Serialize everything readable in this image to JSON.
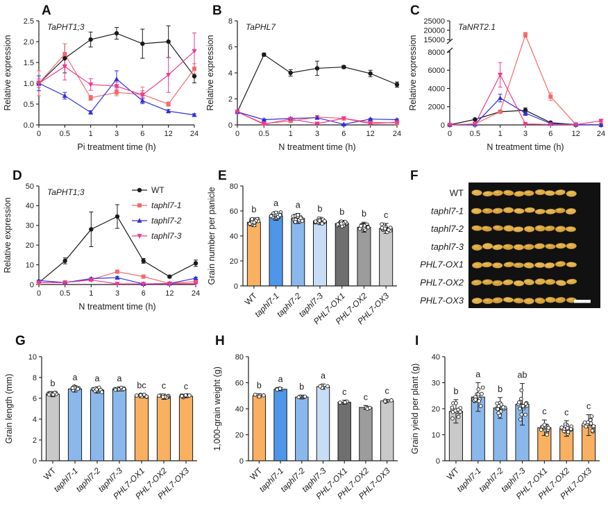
{
  "panel_letters": {
    "A": "A",
    "B": "B",
    "C": "C",
    "D": "D",
    "E": "E",
    "F": "F",
    "G": "G",
    "H": "H",
    "I": "I"
  },
  "genotypes": [
    "WT",
    "taphl7-1",
    "taphl7-2",
    "taphl7-3",
    "PHL7-OX1",
    "PHL7-OX2",
    "PHL7-OX3"
  ],
  "colors": {
    "wt_line": "#1a1a1a",
    "taphl7_1_line": "#F5696B",
    "taphl7_2_line": "#2E2EE0",
    "taphl7_3_line": "#EF3890",
    "bar_orange": "#F9B061",
    "bar_blue_strong": "#4E96E9",
    "bar_blue_mid": "#8AB8EC",
    "bar_blue_light": "#C7DCF5",
    "bar_gray_dark": "#6F6F6F",
    "bar_gray_mid": "#9C9C9C",
    "bar_gray_light": "#C9C9C9"
  },
  "chart_data": [
    {
      "panel": "A",
      "type": "line",
      "title": "TaPHT1;3",
      "xlabel": "Pi treatment time (h)",
      "ylabel": "Relative expression",
      "x": [
        "0",
        "0.5",
        "1",
        "3",
        "6",
        "12",
        "24"
      ],
      "ylim": [
        0,
        2.5
      ],
      "yticks": [
        [
          0,
          "0.0"
        ],
        [
          0.5,
          "0.5"
        ],
        [
          1,
          "1.0"
        ],
        [
          1.5,
          "1.5"
        ],
        [
          2,
          "2.0"
        ],
        [
          2.5,
          "2.5"
        ]
      ],
      "series": [
        {
          "name": "WT",
          "marker": "circle",
          "color": "#1a1a1a",
          "values": [
            1.0,
            1.6,
            2.05,
            2.2,
            1.95,
            2.0,
            1.17
          ],
          "err": [
            0.05,
            0.35,
            0.18,
            0.14,
            0.35,
            0.38,
            0.16
          ]
        },
        {
          "name": "taphl7-1",
          "marker": "square",
          "color": "#F5696B",
          "values": [
            1.0,
            1.7,
            0.65,
            0.78,
            0.73,
            0.5,
            1.35
          ],
          "err": [
            0.3,
            0.25,
            0.06,
            0.08,
            0.18,
            0.05,
            0.12
          ]
        },
        {
          "name": "taphl7-2",
          "marker": "triangle-up",
          "color": "#2E2EE0",
          "values": [
            1.0,
            0.7,
            0.3,
            1.1,
            0.58,
            0.33,
            0.24
          ],
          "err": [
            0.18,
            0.08,
            0.04,
            0.2,
            0.07,
            0.04,
            0.03
          ]
        },
        {
          "name": "taphl7-3",
          "marker": "triangle-down",
          "color": "#EF3890",
          "values": [
            1.0,
            1.4,
            0.97,
            0.93,
            0.72,
            1.2,
            1.77
          ],
          "err": [
            0.1,
            0.32,
            0.14,
            0.1,
            0.1,
            0.42,
            0.44
          ]
        }
      ]
    },
    {
      "panel": "B",
      "type": "line",
      "title": "TaPHL7",
      "xlabel": "N treatment time (h)",
      "ylabel": "Relative expression",
      "x": [
        "0",
        "0.5",
        "1",
        "3",
        "6",
        "12",
        "24"
      ],
      "ylim": [
        0,
        8
      ],
      "yticks": [
        [
          0,
          "0"
        ],
        [
          2,
          "2"
        ],
        [
          4,
          "4"
        ],
        [
          6,
          "6"
        ],
        [
          8,
          "8"
        ]
      ],
      "series": [
        {
          "name": "WT",
          "marker": "circle",
          "color": "#1a1a1a",
          "values": [
            1.0,
            5.4,
            4.0,
            4.35,
            4.45,
            3.95,
            3.1
          ],
          "err": [
            0.05,
            0.12,
            0.25,
            0.55,
            0.12,
            0.25,
            0.2
          ]
        },
        {
          "name": "taphl7-1",
          "marker": "square",
          "color": "#F5696B",
          "values": [
            1.0,
            0.1,
            0.3,
            0.6,
            0.5,
            0.2,
            0.15
          ],
          "err": [
            0.05,
            0.05,
            0.06,
            0.08,
            0.08,
            0.05,
            0.05
          ]
        },
        {
          "name": "taphl7-2",
          "marker": "triangle-up",
          "color": "#2E2EE0",
          "values": [
            1.0,
            0.4,
            0.5,
            0.55,
            0.05,
            0.45,
            0.4
          ],
          "err": [
            0.05,
            0.06,
            0.08,
            0.08,
            0.03,
            0.06,
            0.06
          ]
        },
        {
          "name": "taphl7-3",
          "marker": "triangle-down",
          "color": "#EF3890",
          "values": [
            1.0,
            0.05,
            0.45,
            0.1,
            0.5,
            0.1,
            0.2
          ],
          "err": [
            0.05,
            0.03,
            0.08,
            0.04,
            0.08,
            0.04,
            0.05
          ]
        }
      ]
    },
    {
      "panel": "C",
      "type": "line",
      "title": "TaNRT2.1",
      "xlabel": "N treatment time (h)",
      "ylabel": "Relative expression",
      "x": [
        "0",
        "0.5",
        "1",
        "3",
        "6",
        "12",
        "24"
      ],
      "ybreak": {
        "lower": [
          0,
          8000
        ],
        "upper": [
          15000,
          25000
        ]
      },
      "yticks": [
        [
          0,
          "0"
        ],
        [
          2000,
          "2000"
        ],
        [
          4000,
          "4000"
        ],
        [
          6000,
          "6000"
        ],
        [
          8000,
          "8000"
        ],
        [
          15000,
          "15000"
        ],
        [
          20000,
          "20000"
        ],
        [
          25000,
          "25000"
        ]
      ],
      "series": [
        {
          "name": "WT",
          "marker": "circle",
          "color": "#1a1a1a",
          "values": [
            10,
            600,
            1450,
            1600,
            250,
            30,
            20
          ],
          "err": [
            5,
            80,
            120,
            260,
            60,
            10,
            5
          ]
        },
        {
          "name": "taphl7-1",
          "marker": "square",
          "color": "#F5696B",
          "values": [
            10,
            100,
            1450,
            17500,
            3100,
            50,
            30
          ],
          "err": [
            5,
            30,
            150,
            1300,
            420,
            10,
            5
          ]
        },
        {
          "name": "taphl7-2",
          "marker": "triangle-up",
          "color": "#2E2EE0",
          "values": [
            10,
            50,
            2950,
            1300,
            150,
            20,
            10
          ],
          "err": [
            5,
            20,
            420,
            260,
            40,
            5,
            5
          ]
        },
        {
          "name": "taphl7-3",
          "marker": "triangle-down",
          "color": "#EF3890",
          "values": [
            10,
            100,
            5500,
            100,
            50,
            30,
            450
          ],
          "err": [
            5,
            30,
            1350,
            30,
            10,
            5,
            110
          ]
        }
      ]
    },
    {
      "panel": "D",
      "type": "line",
      "title": "TaPHT1;3",
      "xlabel": "N treatment time (h)",
      "ylabel": "Relative expression",
      "x": [
        "0",
        "0.5",
        "1",
        "3",
        "6",
        "12",
        "24"
      ],
      "ylim": [
        0,
        50
      ],
      "yticks": [
        [
          0,
          "0"
        ],
        [
          10,
          "10"
        ],
        [
          20,
          "20"
        ],
        [
          30,
          "30"
        ],
        [
          40,
          "40"
        ],
        [
          50,
          "50"
        ]
      ],
      "legend": [
        "WT",
        "taphl7-1",
        "taphl7-2",
        "taphl7-3"
      ],
      "series": [
        {
          "name": "WT",
          "marker": "circle",
          "color": "#1a1a1a",
          "values": [
            1,
            12,
            28,
            34.5,
            12,
            4,
            10.8
          ],
          "err": [
            0.3,
            1.5,
            8.8,
            6,
            1.2,
            0.6,
            1.6
          ]
        },
        {
          "name": "taphl7-1",
          "marker": "square",
          "color": "#F5696B",
          "values": [
            1,
            1,
            2.5,
            6.5,
            4,
            0.5,
            1.5
          ],
          "err": [
            0.2,
            0.2,
            0.5,
            0.8,
            0.6,
            0.2,
            0.3
          ]
        },
        {
          "name": "taphl7-2",
          "marker": "triangle-up",
          "color": "#2E2EE0",
          "values": [
            2,
            1,
            3,
            3.5,
            0.3,
            0.5,
            3.2
          ],
          "err": [
            0.3,
            0.2,
            0.5,
            0.6,
            0.2,
            0.2,
            0.5
          ]
        },
        {
          "name": "taphl7-3",
          "marker": "triangle-down",
          "color": "#EF3890",
          "values": [
            1,
            1,
            2.3,
            0.3,
            0.3,
            0.3,
            0.5
          ],
          "err": [
            0.2,
            0.2,
            0.5,
            0.1,
            0.1,
            0.1,
            0.2
          ]
        }
      ]
    },
    {
      "panel": "E",
      "type": "bar",
      "ylabel": "Grain number per panicle",
      "categories": [
        "WT",
        "taphl7-1",
        "taphl7-2",
        "taphl7-3",
        "PHL7-OX1",
        "PHL7-OX2",
        "PHL7-OX3"
      ],
      "values": [
        51,
        56,
        54,
        52,
        50,
        47,
        46
      ],
      "err": [
        3.5,
        3.5,
        4,
        3,
        2.5,
        4,
        4
      ],
      "letters": [
        "b",
        "a",
        "a",
        "b",
        "b",
        "b",
        "c"
      ],
      "colors": [
        "#F9B061",
        "#4E96E9",
        "#8AB8EC",
        "#C7DCF5",
        "#6F6F6F",
        "#9C9C9C",
        "#C9C9C9"
      ],
      "n_points": 20,
      "ylim": [
        0,
        80
      ],
      "yticks": [
        [
          0,
          "0"
        ],
        [
          20,
          "20"
        ],
        [
          40,
          "40"
        ],
        [
          60,
          "60"
        ],
        [
          80,
          "80"
        ]
      ]
    },
    {
      "panel": "G",
      "type": "bar",
      "ylabel": "Grain length (mm)",
      "categories": [
        "WT",
        "taphl7-1",
        "taphl7-2",
        "taphl7-3",
        "PHL7-OX1",
        "PHL7-OX2",
        "PHL7-OX3"
      ],
      "values": [
        6.4,
        6.9,
        6.8,
        6.9,
        6.25,
        6.15,
        6.2
      ],
      "err": [
        0.25,
        0.3,
        0.3,
        0.2,
        0.2,
        0.25,
        0.15
      ],
      "letters": [
        "b",
        "a",
        "a",
        "a",
        "bc",
        "c",
        "c"
      ],
      "colors": [
        "#C9C9C9",
        "#8AB8EC",
        "#8AB8EC",
        "#8AB8EC",
        "#F9B061",
        "#F9B061",
        "#F9B061"
      ],
      "n_points": 11,
      "ylim": [
        0,
        10
      ],
      "yticks": [
        [
          0,
          "0"
        ],
        [
          2,
          "2"
        ],
        [
          4,
          "4"
        ],
        [
          6,
          "6"
        ],
        [
          8,
          "8"
        ],
        [
          10,
          "10"
        ]
      ]
    },
    {
      "panel": "H",
      "type": "bar",
      "ylabel": "1,000-grain weight (g)",
      "categories": [
        "WT",
        "taphl7-1",
        "taphl7-2",
        "taphl7-3",
        "PHL7-OX1",
        "PHL7-OX2",
        "PHL7-OX3"
      ],
      "values": [
        50,
        55,
        49,
        57,
        45,
        41,
        46
      ],
      "err": [
        1.5,
        1.2,
        1.5,
        2,
        1.5,
        1.5,
        1.2
      ],
      "letters": [
        "b",
        "a",
        "b",
        "a",
        "c",
        "c",
        "c"
      ],
      "colors": [
        "#F9B061",
        "#4E96E9",
        "#8AB8EC",
        "#C7DCF5",
        "#6F6F6F",
        "#9C9C9C",
        "#C9C9C9"
      ],
      "n_points": 4,
      "ylim": [
        0,
        80
      ],
      "yticks": [
        [
          0,
          "0"
        ],
        [
          20,
          "20"
        ],
        [
          40,
          "40"
        ],
        [
          60,
          "60"
        ],
        [
          80,
          "80"
        ]
      ]
    },
    {
      "panel": "I",
      "type": "bar",
      "ylabel": "Grain yield per plant (g)",
      "categories": [
        "WT",
        "taphl7-1",
        "taphl7-2",
        "taphl7-3",
        "PHL7-OX1",
        "PHL7-OX2",
        "PHL7-OX3"
      ],
      "values": [
        19,
        24.5,
        20.3,
        21.7,
        12.7,
        12.4,
        13.7
      ],
      "err": [
        4.5,
        5.5,
        4,
        8,
        3,
        3,
        4
      ],
      "letters": [
        "b",
        "a",
        "b",
        "ab",
        "c",
        "c",
        "c"
      ],
      "colors": [
        "#C9C9C9",
        "#8AB8EC",
        "#8AB8EC",
        "#8AB8EC",
        "#F9B061",
        "#F9B061",
        "#F9B061"
      ],
      "n_points": 15,
      "ylim": [
        0,
        40
      ],
      "yticks": [
        [
          0,
          "0"
        ],
        [
          10,
          "10"
        ],
        [
          20,
          "20"
        ],
        [
          30,
          "30"
        ],
        [
          40,
          "40"
        ]
      ]
    }
  ],
  "photo_panel": {
    "panel": "F",
    "rows": [
      "WT",
      "taphl7-1",
      "taphl7-2",
      "taphl7-3",
      "PHL7-OX1",
      "PHL7-OX2",
      "PHL7-OX3"
    ],
    "grains_per_row": 10,
    "background": "#111111",
    "grain_colors": [
      "#DFAC45",
      "#D9A73E",
      "#E2B14C",
      "#D4A039"
    ],
    "scale_bar": true
  }
}
